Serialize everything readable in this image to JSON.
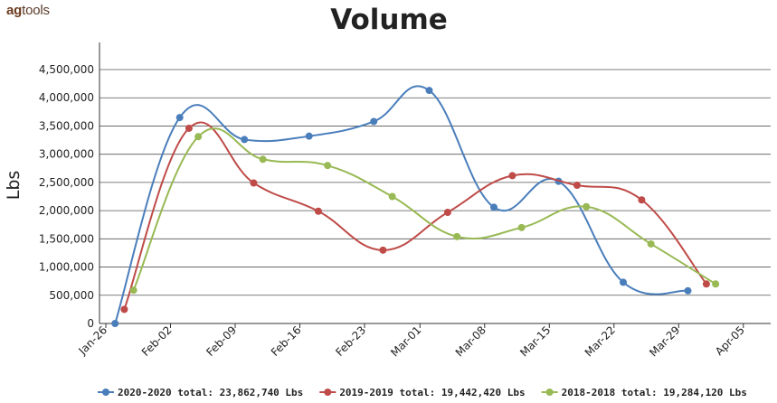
{
  "logo": {
    "ag": "ag",
    "tools": "tools"
  },
  "chart_data": {
    "type": "line",
    "title": "Volume",
    "xlabel": "",
    "ylabel": "Lbs",
    "ylim": [
      0,
      4500000
    ],
    "yticks": [
      0,
      500000,
      1000000,
      1500000,
      2000000,
      2500000,
      3000000,
      3500000,
      4000000,
      4500000
    ],
    "ytick_labels": [
      "0",
      "500,000",
      "1,000,000",
      "1,500,000",
      "2,000,000",
      "2,500,000",
      "3,000,000",
      "3,500,000",
      "4,000,000",
      "4,500,000"
    ],
    "xticks": [
      "Jan-26",
      "Feb-02",
      "Feb-09",
      "Feb-16",
      "Feb-23",
      "Mar-01",
      "Mar-08",
      "Mar-15",
      "Mar-22",
      "Mar-29",
      "Apr-05"
    ],
    "grid": true,
    "legend_position": "bottom",
    "series": [
      {
        "name": "2020-2020 total: 23,862,740 Lbs",
        "color": "#4a7ebb",
        "points": [
          {
            "x": "Jan-27",
            "y": 0
          },
          {
            "x": "Feb-03",
            "y": 3650000
          },
          {
            "x": "Feb-10",
            "y": 3260000
          },
          {
            "x": "Feb-17",
            "y": 3320000
          },
          {
            "x": "Feb-24",
            "y": 3580000
          },
          {
            "x": "Mar-02",
            "y": 4130000
          },
          {
            "x": "Mar-09",
            "y": 2060000
          },
          {
            "x": "Mar-16",
            "y": 2520000
          },
          {
            "x": "Mar-23",
            "y": 730000
          },
          {
            "x": "Mar-30",
            "y": 580000
          }
        ]
      },
      {
        "name": "2019-2019 total: 19,442,420 Lbs",
        "color": "#be4b48",
        "points": [
          {
            "x": "Jan-28",
            "y": 250000
          },
          {
            "x": "Feb-04",
            "y": 3460000
          },
          {
            "x": "Feb-11",
            "y": 2490000
          },
          {
            "x": "Feb-18",
            "y": 1990000
          },
          {
            "x": "Feb-25",
            "y": 1300000
          },
          {
            "x": "Mar-04",
            "y": 1970000
          },
          {
            "x": "Mar-11",
            "y": 2620000
          },
          {
            "x": "Mar-18",
            "y": 2450000
          },
          {
            "x": "Mar-25",
            "y": 2190000
          },
          {
            "x": "Apr-01",
            "y": 700000
          }
        ]
      },
      {
        "name": "2018-2018 total: 19,284,120 Lbs",
        "color": "#98b954",
        "points": [
          {
            "x": "Jan-29",
            "y": 590000
          },
          {
            "x": "Feb-05",
            "y": 3310000
          },
          {
            "x": "Feb-12",
            "y": 2910000
          },
          {
            "x": "Feb-19",
            "y": 2800000
          },
          {
            "x": "Feb-26",
            "y": 2250000
          },
          {
            "x": "Mar-05",
            "y": 1540000
          },
          {
            "x": "Mar-12",
            "y": 1700000
          },
          {
            "x": "Mar-19",
            "y": 2070000
          },
          {
            "x": "Mar-26",
            "y": 1410000
          },
          {
            "x": "Apr-02",
            "y": 700000
          }
        ]
      }
    ]
  }
}
